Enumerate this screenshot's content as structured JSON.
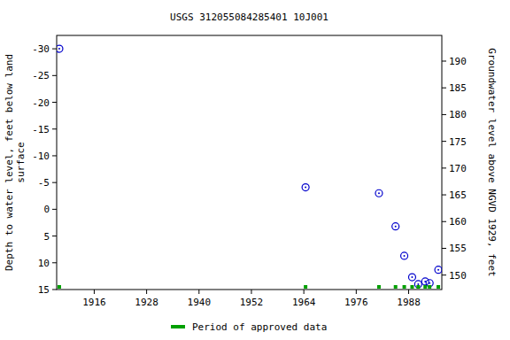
{
  "chart_data": {
    "type": "scatter",
    "title": "USGS 312055084285401 10J001",
    "y_label": [
      "Depth to water level, feet below land",
      "surface"
    ],
    "y2_label": "Groundwater level above NGVD 1929, feet",
    "x": [
      1908.0,
      1964.4,
      1981.2,
      1985.0,
      1987.0,
      1988.8,
      1990.2,
      1991.8,
      1992.8,
      1994.8
    ],
    "series": [
      {
        "color": "#0000cc",
        "marker": "circle",
        "values": [
          -30,
          -4.1,
          -3,
          3.2,
          8.7,
          12.7,
          14,
          13.5,
          13.8,
          11.3
        ]
      },
      {
        "name": "Period of approved data",
        "color": "#00a000",
        "marker": "square",
        "values": [
          14.5,
          14.5,
          14.5,
          14.5,
          14.5,
          14.5,
          14.5,
          14.5,
          14.5,
          14.5
        ]
      }
    ],
    "xlim": [
      1907.4,
      1995.6
    ],
    "xticks": [
      1916,
      1928,
      1940,
      1952,
      1964,
      1976,
      1988
    ],
    "ylim": [
      -32.5,
      15
    ],
    "yticks": [
      -30,
      -25,
      -20,
      -15,
      -10,
      -5,
      0,
      5,
      10,
      15
    ],
    "y2lim": [
      194.8,
      147.3
    ],
    "y2ticks": [
      150,
      155,
      160,
      165,
      170,
      175,
      180,
      185,
      190
    ],
    "legend": "bottom"
  }
}
